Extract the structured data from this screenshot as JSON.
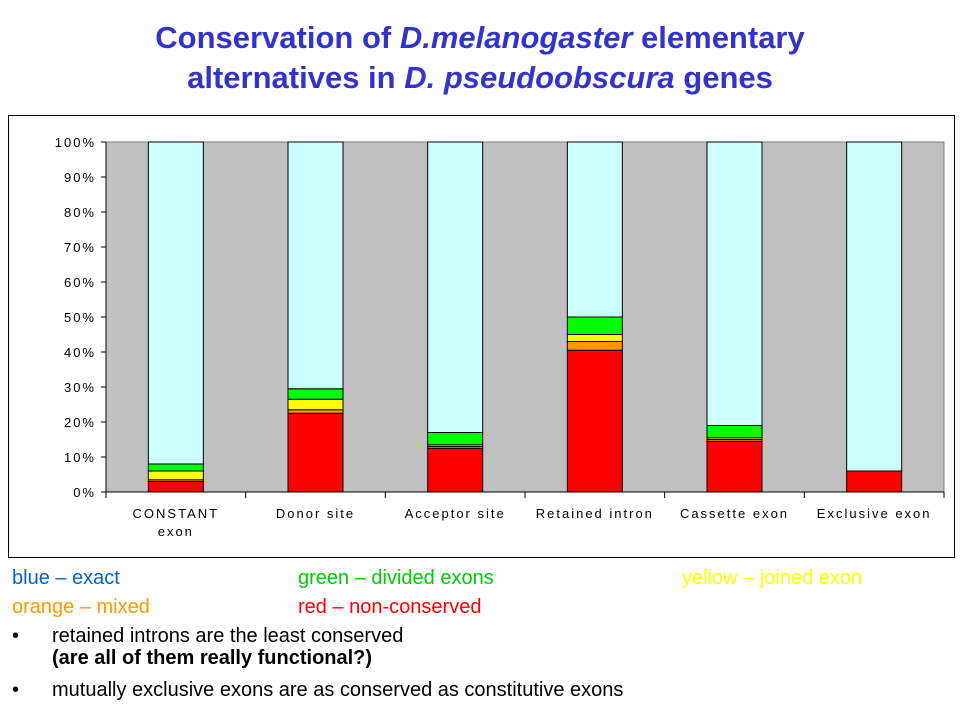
{
  "title": {
    "line1_pre": "Conservation of ",
    "line1_italic": "D.melanogaster",
    "line1_post": " elementary",
    "line2_pre": "alternatives in ",
    "line2_italic": "D. pseudoobscura",
    "line2_post": " genes"
  },
  "chart_data": {
    "type": "bar",
    "stacked": true,
    "percent": true,
    "categories": [
      "CONSTANT exon",
      "Donor site",
      "Acceptor site",
      "Retained intron",
      "Cassette exon",
      "Exclusive exon"
    ],
    "category_lines": [
      [
        "CONSTANT",
        "exon"
      ],
      [
        "Donor site"
      ],
      [
        "Acceptor site"
      ],
      [
        "Retained intron"
      ],
      [
        "Cassette exon"
      ],
      [
        "Exclusive exon"
      ]
    ],
    "yticks": [
      "0%",
      "10%",
      "20%",
      "30%",
      "40%",
      "50%",
      "60%",
      "70%",
      "80%",
      "90%",
      "100%"
    ],
    "ylim": [
      0,
      100
    ],
    "grid": false,
    "series": [
      {
        "key": "red",
        "color": "#ff0000",
        "values": [
          3,
          22.5,
          12.5,
          40.5,
          14.5,
          6
        ]
      },
      {
        "key": "orange",
        "color": "#ff9900",
        "values": [
          0.5,
          1,
          0.5,
          2.5,
          0.5,
          0
        ]
      },
      {
        "key": "yellow",
        "color": "#ffff00",
        "values": [
          2.5,
          3,
          0.5,
          2,
          0.5,
          0
        ]
      },
      {
        "key": "green",
        "color": "#00ff00",
        "values": [
          2,
          3,
          3.5,
          5,
          3.5,
          0
        ]
      },
      {
        "key": "blue",
        "color": "#ccffff",
        "values": [
          92,
          70.5,
          83,
          50,
          81,
          94
        ]
      }
    ]
  },
  "legend": {
    "blue": {
      "text": "blue – exact",
      "color": "#0066cc"
    },
    "green": {
      "text": "green – divided exons",
      "color": "#00cc00"
    },
    "yellow": {
      "text": "yellow – joined exon",
      "color": "#ffff00"
    },
    "orange": {
      "text": "orange – mixed",
      "color": "#ff9900"
    },
    "red": {
      "text": "red – non-conserved",
      "color": "#ff0000"
    }
  },
  "bullets": [
    {
      "symbol": "•",
      "text": "retained introns are the least conserved",
      "sub": "(are all of them really functional?)"
    },
    {
      "symbol": "•",
      "text": "mutually exclusive exons are as conserved as constitutive exons"
    }
  ]
}
